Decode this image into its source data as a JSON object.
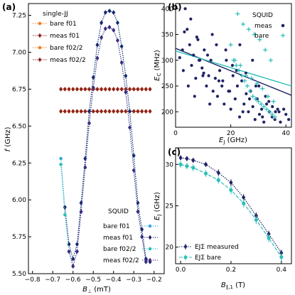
{
  "colors": {
    "dark_navy": "#1f2366",
    "light_blue": "#35a8e0",
    "orange": "#f07f22",
    "dark_red": "#8b2222",
    "teal": "#2bbfb8",
    "purple": "#4a2180"
  },
  "panel_a": {
    "label": "(a)",
    "legend_single": {
      "title": "single-JJ",
      "items": [
        "bare f01",
        "meas f01",
        "bare f02/2",
        "meas f02/2"
      ]
    },
    "legend_squid": {
      "title": "SQUID",
      "items": [
        "bare f01",
        "meas f01",
        "bare f02/2",
        "meas f02/2"
      ]
    }
  },
  "panel_b": {
    "label": "(b)",
    "legend": {
      "title": "SQUID",
      "items": [
        "meas",
        "bare"
      ]
    }
  },
  "panel_c": {
    "label": "(c)",
    "legend": {
      "items": [
        "EJΣ measured",
        "EJΣ bare"
      ]
    }
  },
  "chart_data": [
    {
      "type": "line",
      "panel": "(a)",
      "xlabel": "B⊥ (mT)",
      "ylabel": "f (GHz)",
      "xlim": [
        -0.82,
        -0.15
      ],
      "ylim": [
        5.5,
        7.33
      ],
      "xticks": [
        "−0.8",
        "−0.7",
        "−0.6",
        "−0.5",
        "−0.4",
        "−0.3",
        "−0.2"
      ],
      "yticks": [
        "5.50",
        "5.75",
        "6.00",
        "6.25",
        "6.50",
        "6.75",
        "7.00",
        "7.25"
      ],
      "series": [
        {
          "name": "single-JJ bare f01",
          "color": "#f07f22",
          "marker": "o",
          "x": [
            -0.66,
            -0.64,
            -0.62,
            -0.6,
            -0.58,
            -0.56,
            -0.54,
            -0.52,
            -0.5,
            -0.48,
            -0.46,
            -0.44,
            -0.42,
            -0.4,
            -0.38,
            -0.36,
            -0.34,
            -0.32,
            -0.3,
            -0.28,
            -0.26,
            -0.24,
            -0.22
          ],
          "y": [
            6.6,
            6.6,
            6.6,
            6.6,
            6.6,
            6.6,
            6.6,
            6.6,
            6.6,
            6.6,
            6.6,
            6.6,
            6.6,
            6.6,
            6.6,
            6.6,
            6.6,
            6.6,
            6.6,
            6.6,
            6.6,
            6.6,
            6.6
          ]
        },
        {
          "name": "single-JJ meas f01",
          "color": "#8b2222",
          "marker": "d",
          "x": [
            -0.66,
            -0.64,
            -0.62,
            -0.6,
            -0.58,
            -0.56,
            -0.54,
            -0.52,
            -0.5,
            -0.48,
            -0.46,
            -0.44,
            -0.42,
            -0.4,
            -0.38,
            -0.36,
            -0.34,
            -0.32,
            -0.3,
            -0.28,
            -0.26,
            -0.24,
            -0.22
          ],
          "y": [
            6.6,
            6.6,
            6.6,
            6.6,
            6.6,
            6.6,
            6.6,
            6.6,
            6.6,
            6.6,
            6.6,
            6.6,
            6.6,
            6.6,
            6.6,
            6.6,
            6.6,
            6.6,
            6.6,
            6.6,
            6.6,
            6.6,
            6.6
          ]
        },
        {
          "name": "single-JJ bare f02/2",
          "color": "#f07f22",
          "marker": "o",
          "x": [
            -0.66,
            -0.64,
            -0.62,
            -0.6,
            -0.58,
            -0.56,
            -0.54,
            -0.52,
            -0.5,
            -0.48,
            -0.46,
            -0.44,
            -0.42,
            -0.4,
            -0.38,
            -0.36,
            -0.34,
            -0.32,
            -0.3,
            -0.28,
            -0.26,
            -0.24,
            -0.22
          ],
          "y": [
            6.75,
            6.75,
            6.75,
            6.75,
            6.75,
            6.75,
            6.75,
            6.75,
            6.75,
            6.75,
            6.75,
            6.75,
            6.75,
            6.75,
            6.75,
            6.75,
            6.75,
            6.75,
            6.75,
            6.75,
            6.75,
            6.75,
            6.75
          ]
        },
        {
          "name": "single-JJ meas f02/2",
          "color": "#8b2222",
          "marker": "d",
          "x": [
            -0.66,
            -0.64,
            -0.62,
            -0.6,
            -0.58,
            -0.56,
            -0.54,
            -0.52,
            -0.5,
            -0.48,
            -0.46,
            -0.44,
            -0.42,
            -0.4,
            -0.38,
            -0.36,
            -0.34,
            -0.32,
            -0.3,
            -0.28,
            -0.26,
            -0.24,
            -0.22
          ],
          "y": [
            6.75,
            6.75,
            6.75,
            6.75,
            6.75,
            6.75,
            6.75,
            6.75,
            6.75,
            6.75,
            6.75,
            6.75,
            6.75,
            6.75,
            6.75,
            6.75,
            6.75,
            6.75,
            6.75,
            6.75,
            6.75,
            6.75,
            6.75
          ]
        },
        {
          "name": "SQUID bare f01",
          "color": "#35a8e0",
          "marker": "o",
          "x": [
            -0.66,
            -0.64,
            -0.62,
            -0.6,
            -0.58,
            -0.56,
            -0.54,
            -0.52,
            -0.5,
            -0.48,
            -0.46,
            -0.44,
            -0.42,
            -0.4,
            -0.38,
            -0.36,
            -0.34,
            -0.32,
            -0.3,
            -0.28,
            -0.26,
            -0.24,
            -0.22
          ],
          "y": [
            6.28,
            5.95,
            5.7,
            5.6,
            5.7,
            5.98,
            6.28,
            6.6,
            6.83,
            7.05,
            7.2,
            7.27,
            7.28,
            7.27,
            7.2,
            7.04,
            6.84,
            6.6,
            6.3,
            5.98,
            5.8,
            5.6,
            5.58
          ]
        },
        {
          "name": "SQUID meas f01",
          "color": "#1f2366",
          "marker": "d",
          "x": [
            -0.64,
            -0.62,
            -0.6,
            -0.58,
            -0.56,
            -0.54,
            -0.52,
            -0.5,
            -0.48,
            -0.46,
            -0.44,
            -0.42,
            -0.4,
            -0.38,
            -0.36,
            -0.34,
            -0.32,
            -0.3,
            -0.28,
            -0.26,
            -0.24,
            -0.22
          ],
          "y": [
            5.95,
            5.7,
            5.6,
            5.7,
            5.98,
            6.28,
            6.6,
            6.83,
            7.05,
            7.2,
            7.27,
            7.28,
            7.27,
            7.2,
            7.04,
            6.84,
            6.6,
            6.3,
            5.98,
            5.8,
            5.6,
            5.58
          ]
        },
        {
          "name": "SQUID bare f02/2",
          "color": "#2bbfb8",
          "marker": "o",
          "x": [
            -0.66,
            -0.64,
            -0.62,
            -0.6,
            -0.58,
            -0.56,
            -0.54,
            -0.52,
            -0.5,
            -0.48,
            -0.46,
            -0.44,
            -0.42,
            -0.4,
            -0.38,
            -0.36,
            -0.34,
            -0.32,
            -0.3,
            -0.28,
            -0.26,
            -0.24
          ],
          "y": [
            6.24,
            5.9,
            5.65,
            5.55,
            5.65,
            5.92,
            6.22,
            6.52,
            6.76,
            6.96,
            7.1,
            7.16,
            7.17,
            7.15,
            7.08,
            6.93,
            6.73,
            6.49,
            6.2,
            5.92,
            5.75,
            5.58
          ]
        },
        {
          "name": "SQUID meas f02/2",
          "color": "#4a2180",
          "marker": "d",
          "x": [
            -0.62,
            -0.6,
            -0.58,
            -0.56,
            -0.54,
            -0.52,
            -0.5,
            -0.48,
            -0.46,
            -0.44,
            -0.42,
            -0.4,
            -0.38,
            -0.36,
            -0.34,
            -0.32,
            -0.3,
            -0.28,
            -0.26,
            -0.24
          ],
          "y": [
            5.65,
            5.55,
            5.65,
            5.92,
            6.22,
            6.52,
            6.76,
            6.96,
            7.1,
            7.16,
            7.17,
            7.15,
            7.08,
            6.93,
            6.73,
            6.49,
            6.2,
            5.92,
            5.75,
            5.58
          ]
        }
      ]
    },
    {
      "type": "scatter",
      "panel": "(b)",
      "xlabel": "EJ (GHz)",
      "ylabel": "EC (MHz)",
      "xlim": [
        0,
        42
      ],
      "ylim": [
        170,
        410
      ],
      "xticks": [
        "0",
        "20",
        "40"
      ],
      "yticks": [
        "200",
        "250",
        "300",
        "350",
        "400"
      ],
      "series": [
        {
          "name": "meas",
          "color": "#1f2366",
          "marker": "o",
          "x": [
            1.5,
            2.5,
            3.5,
            4.2,
            5.1,
            5.8,
            6.5,
            7.3,
            8.1,
            8.8,
            9.6,
            10.4,
            11.2,
            12.0,
            12.8,
            13.6,
            14.4,
            15.2,
            16.0,
            16.8,
            17.6,
            18.4,
            19.2,
            20.0,
            20.8,
            21.6,
            22.4,
            23.2,
            24.0,
            24.8,
            25.6,
            26.4,
            27.2,
            28.0,
            28.8,
            29.6,
            30.4,
            31.2,
            32.0,
            33.0,
            34.0,
            35.0,
            36.0,
            37.0,
            38.0,
            40.0,
            41.0,
            2.8,
            4.6,
            6.9,
            8.5,
            10.2,
            12.4,
            14.8,
            17.1,
            19.6,
            22.1,
            24.4,
            26.8,
            29.1,
            31.5,
            33.8,
            36.2,
            3.2,
            5.5,
            7.7,
            9.9,
            11.6,
            13.3,
            15.7,
            18.2,
            20.6,
            23.3,
            25.5,
            27.9,
            30.2,
            32.6,
            35.1,
            37.5,
            39.2
          ],
          "y": [
            305,
            320,
            400,
            360,
            330,
            290,
            310,
            265,
            340,
            300,
            285,
            320,
            250,
            270,
            300,
            240,
            265,
            230,
            280,
            250,
            215,
            300,
            240,
            205,
            270,
            225,
            250,
            190,
            260,
            215,
            235,
            200,
            240,
            210,
            185,
            225,
            195,
            205,
            180,
            215,
            200,
            190,
            185,
            205,
            180,
            195,
            185,
            280,
            250,
            230,
            300,
            275,
            215,
            330,
            260,
            240,
            280,
            200,
            225,
            250,
            190,
            220,
            200,
            355,
            380,
            345,
            270,
            310,
            350,
            260,
            320,
            290,
            330,
            275,
            300,
            250,
            230,
            210,
            200,
            205
          ]
        },
        {
          "name": "bare",
          "color": "#2bbfb8",
          "marker": "+",
          "x": [
            20,
            21,
            22,
            23,
            24,
            25,
            26,
            27,
            28,
            29,
            30,
            31,
            32,
            33,
            34,
            35,
            36,
            22.5,
            24.5,
            26.5,
            28.5,
            30.5,
            32.5,
            34.5,
            21.5,
            23.5,
            25.5,
            27.5,
            29.5,
            31.5,
            33.5,
            35.5
          ],
          "y": [
            330,
            300,
            290,
            280,
            270,
            260,
            250,
            240,
            230,
            225,
            220,
            215,
            210,
            205,
            200,
            195,
            190,
            390,
            370,
            360,
            350,
            340,
            320,
            300,
            300,
            290,
            270,
            265,
            255,
            245,
            230,
            220
          ]
        }
      ],
      "fit_lines": [
        {
          "color": "#1f2366",
          "x": [
            0,
            42
          ],
          "y": [
            323,
            232
          ]
        },
        {
          "color": "#2bbfb8",
          "x": [
            0,
            42
          ],
          "y": [
            318,
            250
          ]
        }
      ]
    },
    {
      "type": "line",
      "panel": "(c)",
      "xlabel": "B∥,1 (T)",
      "ylabel": "EJ (GHz)",
      "xlim": [
        -0.02,
        0.44
      ],
      "ylim": [
        18,
        32
      ],
      "xticks": [
        "0.0",
        "0.2",
        "0.4"
      ],
      "yticks": [
        "20",
        "25",
        "30"
      ],
      "series": [
        {
          "name": "EJΣ measured",
          "color": "#1f2366",
          "marker": "d",
          "x": [
            0.0,
            0.025,
            0.05,
            0.1,
            0.15,
            0.2,
            0.25,
            0.3,
            0.35,
            0.4
          ],
          "y": [
            30.8,
            30.7,
            30.5,
            30.0,
            29.0,
            27.8,
            26.0,
            23.8,
            21.6,
            19.3
          ],
          "err": [
            0.3,
            0.3,
            0.3,
            0.3,
            0.4,
            0.4,
            0.4,
            0.4,
            0.4,
            0.4
          ]
        },
        {
          "name": "EJΣ bare",
          "color": "#2bbfb8",
          "marker": "o",
          "x": [
            0.0,
            0.025,
            0.05,
            0.1,
            0.15,
            0.2,
            0.25,
            0.3,
            0.35,
            0.4
          ],
          "y": [
            30.0,
            29.8,
            29.6,
            28.9,
            28.1,
            26.9,
            25.3,
            23.3,
            21.1,
            18.8
          ],
          "err": [
            0.4,
            0.4,
            0.4,
            0.4,
            0.4,
            0.5,
            0.5,
            0.5,
            0.5,
            0.5
          ]
        }
      ]
    }
  ]
}
